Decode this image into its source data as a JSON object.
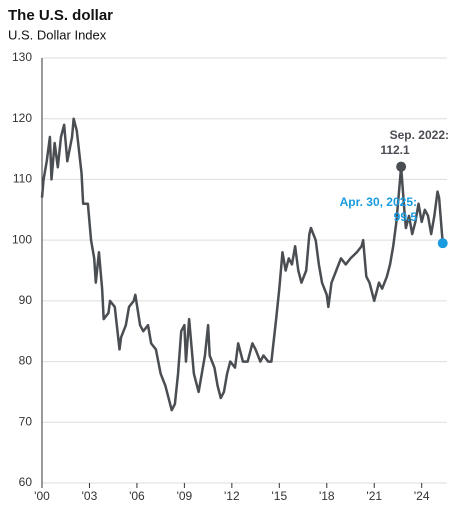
{
  "chart_data": {
    "type": "line",
    "title": "The U.S. dollar",
    "subtitle": "U.S. Dollar Index",
    "x": [
      2000.0,
      2000.1,
      2000.3,
      2000.5,
      2000.6,
      2000.8,
      2001.0,
      2001.2,
      2001.4,
      2001.6,
      2001.9,
      2002.0,
      2002.2,
      2002.5,
      2002.6,
      2002.9,
      2003.1,
      2003.3,
      2003.4,
      2003.6,
      2003.8,
      2003.9,
      2004.2,
      2004.3,
      2004.6,
      2004.9,
      2005.0,
      2005.3,
      2005.5,
      2005.8,
      2005.9,
      2006.2,
      2006.4,
      2006.7,
      2006.9,
      2007.2,
      2007.5,
      2007.8,
      2007.9,
      2008.2,
      2008.4,
      2008.6,
      2008.8,
      2009.0,
      2009.1,
      2009.3,
      2009.6,
      2009.8,
      2009.9,
      2010.3,
      2010.5,
      2010.6,
      2010.9,
      2011.1,
      2011.3,
      2011.5,
      2011.7,
      2011.9,
      2012.2,
      2012.4,
      2012.7,
      2013.0,
      2013.3,
      2013.5,
      2013.8,
      2014.0,
      2014.3,
      2014.5,
      2014.8,
      2015.0,
      2015.2,
      2015.4,
      2015.6,
      2015.8,
      2016.0,
      2016.2,
      2016.4,
      2016.7,
      2016.9,
      2017.0,
      2017.3,
      2017.5,
      2017.7,
      2018.0,
      2018.1,
      2018.3,
      2018.6,
      2018.9,
      2019.2,
      2019.5,
      2019.9,
      2020.2,
      2020.3,
      2020.5,
      2020.7,
      2020.9,
      2021.0,
      2021.3,
      2021.5,
      2021.8,
      2022.0,
      2022.2,
      2022.4,
      2022.6,
      2022.7,
      2022.9,
      2023.0,
      2023.2,
      2023.4,
      2023.6,
      2023.8,
      2024.0,
      2024.2,
      2024.4,
      2024.6,
      2024.8,
      2025.0,
      2025.1,
      2025.33
    ],
    "series": [
      {
        "color": "#4a4d52",
        "values": [
          107,
          110,
          113,
          117,
          110,
          116,
          112,
          117,
          119,
          113,
          117,
          120,
          118,
          111,
          106,
          106,
          100,
          97,
          93,
          98,
          92,
          87,
          88,
          90,
          89,
          82,
          84,
          86,
          89,
          90,
          91,
          86,
          85,
          86,
          83,
          82,
          78,
          76,
          75,
          72,
          73,
          78,
          85,
          86,
          80,
          87,
          78,
          76,
          75,
          81,
          86,
          81,
          79,
          76,
          74,
          75,
          78,
          80,
          79,
          83,
          80,
          80,
          83,
          82,
          80,
          81,
          80,
          80,
          87,
          92,
          98,
          95,
          97,
          96,
          99,
          95,
          93,
          95,
          101,
          102,
          100,
          96,
          93,
          91,
          89,
          93,
          95,
          97,
          96,
          97,
          98,
          99,
          100,
          94,
          93,
          91,
          90,
          93,
          92,
          94,
          96,
          99,
          103,
          109,
          112.1,
          105,
          102,
          104,
          101,
          103,
          106,
          103,
          105,
          104,
          101,
          104,
          108,
          107,
          99.5
        ]
      }
    ],
    "xlim": [
      2000,
      2025.6
    ],
    "ylim": [
      60,
      130
    ],
    "xticks": [
      {
        "value": 2000,
        "label": "'00"
      },
      {
        "value": 2003,
        "label": "'03"
      },
      {
        "value": 2006,
        "label": "'06"
      },
      {
        "value": 2009,
        "label": "'09"
      },
      {
        "value": 2012,
        "label": "'12"
      },
      {
        "value": 2015,
        "label": "'15"
      },
      {
        "value": 2018,
        "label": "'18"
      },
      {
        "value": 2021,
        "label": "'21"
      },
      {
        "value": 2024,
        "label": "'24"
      }
    ],
    "yticks": [
      60,
      70,
      80,
      90,
      100,
      110,
      120,
      130
    ],
    "grid": true,
    "annotations": [
      {
        "label": "Sep. 2022:",
        "x": 2022.7,
        "value": 112.1,
        "color": "#4a4d52"
      },
      {
        "label": "Apr. 30, 2025:",
        "x": 2025.33,
        "value": 99.5,
        "color": "#1a9be0"
      }
    ]
  }
}
